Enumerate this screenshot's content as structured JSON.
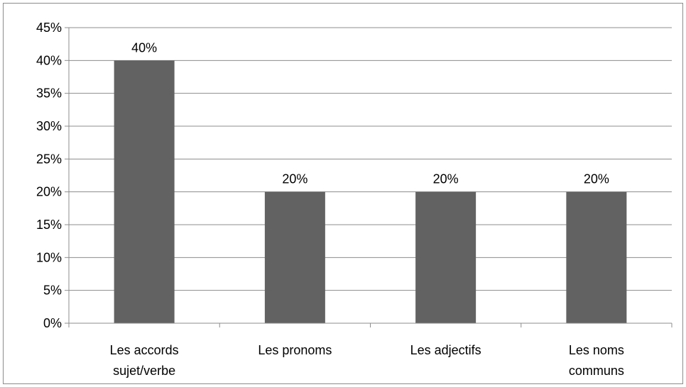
{
  "chart_data": {
    "type": "bar",
    "categories": [
      [
        "Les accords",
        "sujet/verbe"
      ],
      [
        "Les pronoms"
      ],
      [
        "Les adjectifs"
      ],
      [
        "Les noms",
        "communs"
      ]
    ],
    "values": [
      40,
      20,
      20,
      20
    ],
    "data_labels": [
      "40%",
      "20%",
      "20%",
      "20%"
    ],
    "y_ticks": [
      "0%",
      "5%",
      "10%",
      "15%",
      "20%",
      "25%",
      "30%",
      "35%",
      "40%",
      "45%"
    ],
    "ylim": [
      0,
      45
    ],
    "grid": true,
    "legend": "none",
    "bar_color": "#626262",
    "grid_color": "#8c8c8c"
  }
}
